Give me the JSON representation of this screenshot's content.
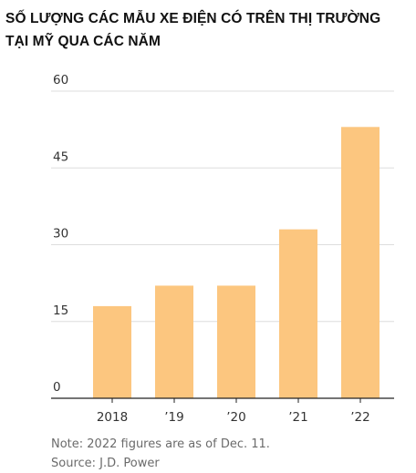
{
  "title_lines": [
    "SỐ LƯỢNG CÁC MẪU XE ĐIỆN CÓ TRÊN THỊ TRƯỜNG",
    "TẠI MỸ QUA CÁC NĂM"
  ],
  "note": "Note: 2022 figures are as of Dec. 11.",
  "source": "Source: J.D. Power",
  "colors": {
    "bar": "#fcc67f",
    "grid": "#dddddd",
    "tick_text": "#333333",
    "baseline": "#222222"
  },
  "chart_data": {
    "type": "bar",
    "title": "SỐ LƯỢNG CÁC MẪU XE ĐIỆN CÓ TRÊN THỊ TRƯỜNG TẠI MỸ QUA CÁC NĂM",
    "categories": [
      "2018",
      "’19",
      "’20",
      "’21",
      "’22"
    ],
    "values": [
      18,
      22,
      22,
      33,
      53
    ],
    "ylim": [
      0,
      60
    ],
    "yticks": [
      "0",
      "15",
      "30",
      "45",
      "60"
    ],
    "xlabel": "",
    "ylabel": "",
    "grid": true,
    "legend": "none"
  }
}
